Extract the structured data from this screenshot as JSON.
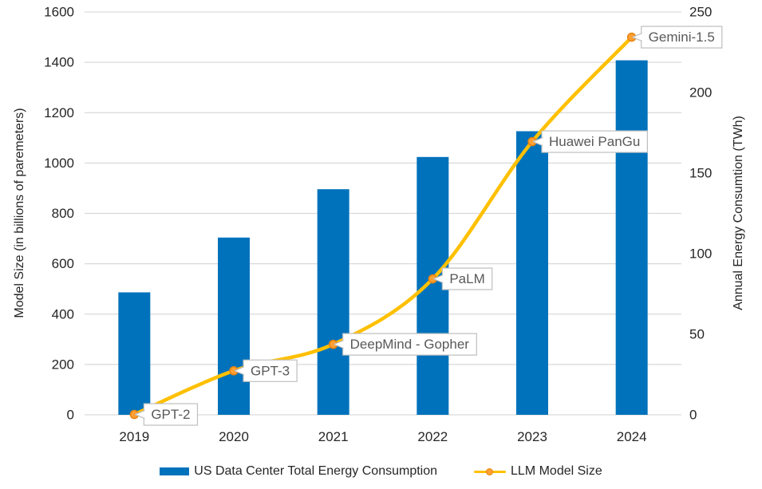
{
  "chart_data": {
    "type": "combo-bar-line",
    "categories": [
      "2019",
      "2020",
      "2021",
      "2022",
      "2023",
      "2024"
    ],
    "series": [
      {
        "name": "US Data Center Total Energy Consumption",
        "type": "bar",
        "axis": "right",
        "values": [
          76,
          110,
          140,
          160,
          176,
          220
        ],
        "color": "#0072BC"
      },
      {
        "name": "LLM Model Size",
        "type": "line",
        "axis": "left",
        "values": [
          1.5,
          175,
          280,
          540,
          1085,
          1500
        ],
        "point_labels": [
          "GPT-2",
          "GPT-3",
          "DeepMind - Gopher",
          "PaLM",
          "Huawei PanGu",
          "Gemini-1.5"
        ],
        "color": "#FFC000",
        "marker_fill": "#FFA033",
        "marker_stroke": "#E8820C"
      }
    ],
    "left_axis": {
      "title": "Model Size (in billions of paremeters)",
      "min": 0,
      "max": 1600,
      "step": 200,
      "ticks": [
        "0",
        "200",
        "400",
        "600",
        "800",
        "1000",
        "1200",
        "1400",
        "1600"
      ]
    },
    "right_axis": {
      "title": "Annual Energy Consumtion (TWh)",
      "min": 0,
      "max": 250,
      "step": 50,
      "ticks": [
        "0",
        "50",
        "100",
        "150",
        "200",
        "250"
      ]
    },
    "grid": true,
    "legend_position": "bottom",
    "colors": {
      "gridline": "#D9D9D9",
      "tick_text": "#262626",
      "callout_text": "#595959",
      "callout_border": "#BFBFBF",
      "callout_bg": "#FFFFFF"
    }
  }
}
